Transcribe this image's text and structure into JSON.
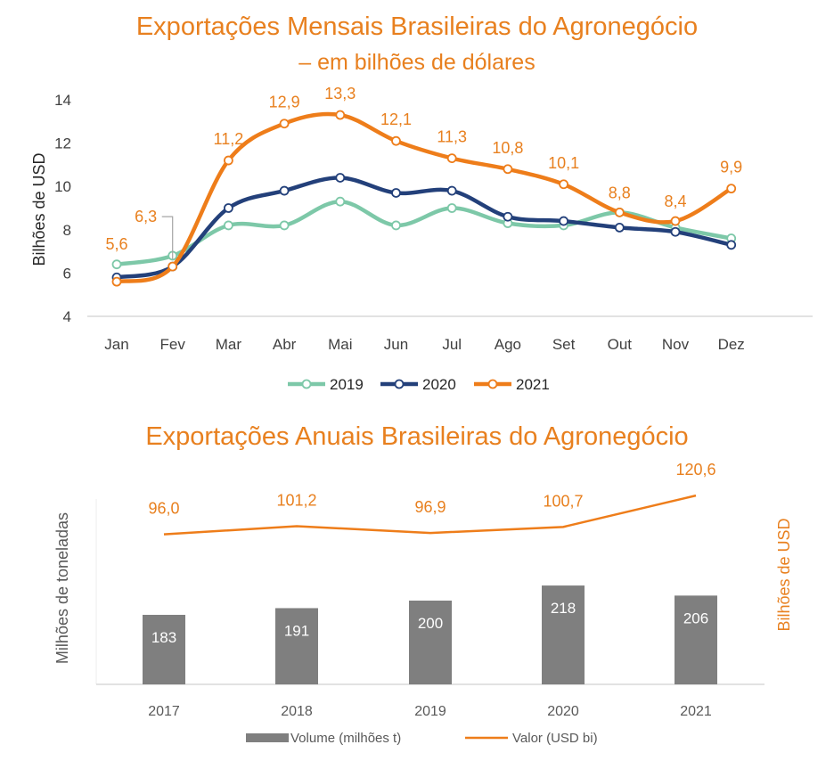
{
  "chart_data": [
    {
      "type": "line",
      "title": "Exportações Mensais Brasileiras do Agronegócio",
      "subtitle": "– em bilhões de dólares",
      "ylabel": "Bilhões de USD",
      "ylim": [
        4,
        14
      ],
      "yticks": [
        "4",
        "6",
        "8",
        "10",
        "12",
        "14"
      ],
      "categories": [
        "Jan",
        "Fev",
        "Mar",
        "Abr",
        "Mai",
        "Jun",
        "Jul",
        "Ago",
        "Set",
        "Out",
        "Nov",
        "Dez"
      ],
      "series": [
        {
          "name": "2019",
          "color": "#7DC8A8",
          "values": [
            6.4,
            6.8,
            8.2,
            8.2,
            9.3,
            8.2,
            9.0,
            8.3,
            8.2,
            8.8,
            8.1,
            7.6
          ]
        },
        {
          "name": "2020",
          "color": "#23407A",
          "values": [
            5.8,
            6.3,
            9.0,
            9.8,
            10.4,
            9.7,
            9.8,
            8.6,
            8.4,
            8.1,
            7.9,
            7.3
          ]
        },
        {
          "name": "2021",
          "color": "#EE7D1A",
          "values": [
            5.6,
            6.3,
            11.2,
            12.9,
            13.3,
            12.1,
            11.3,
            10.8,
            10.1,
            8.8,
            8.4,
            9.9
          ],
          "labels": [
            "5,6",
            "6,3",
            "11,2",
            "12,9",
            "13,3",
            "12,1",
            "11,3",
            "10,8",
            "10,1",
            "8,8",
            "8,4",
            "9,9"
          ]
        }
      ],
      "legend": "bottom"
    },
    {
      "type": "bar+line",
      "title": "Exportações Anuais Brasileiras do Agronegócio",
      "ylabel_left": "Milhões de toneladas",
      "ylabel_right": "Bilhões de USD",
      "categories": [
        "2017",
        "2018",
        "2019",
        "2020",
        "2021"
      ],
      "bars": {
        "name": "Volume (milhões t)",
        "color": "#7F7F7F",
        "values": [
          183,
          191,
          200,
          218,
          206
        ],
        "labels": [
          "183",
          "191",
          "200",
          "218",
          "206"
        ]
      },
      "line": {
        "name": "Valor (USD bi)",
        "color": "#EE7D1A",
        "values": [
          96.0,
          101.2,
          96.9,
          100.7,
          120.6
        ],
        "labels": [
          "96,0",
          "101,2",
          "96,9",
          "100,7",
          "120,6"
        ]
      },
      "legend": "bottom"
    }
  ]
}
